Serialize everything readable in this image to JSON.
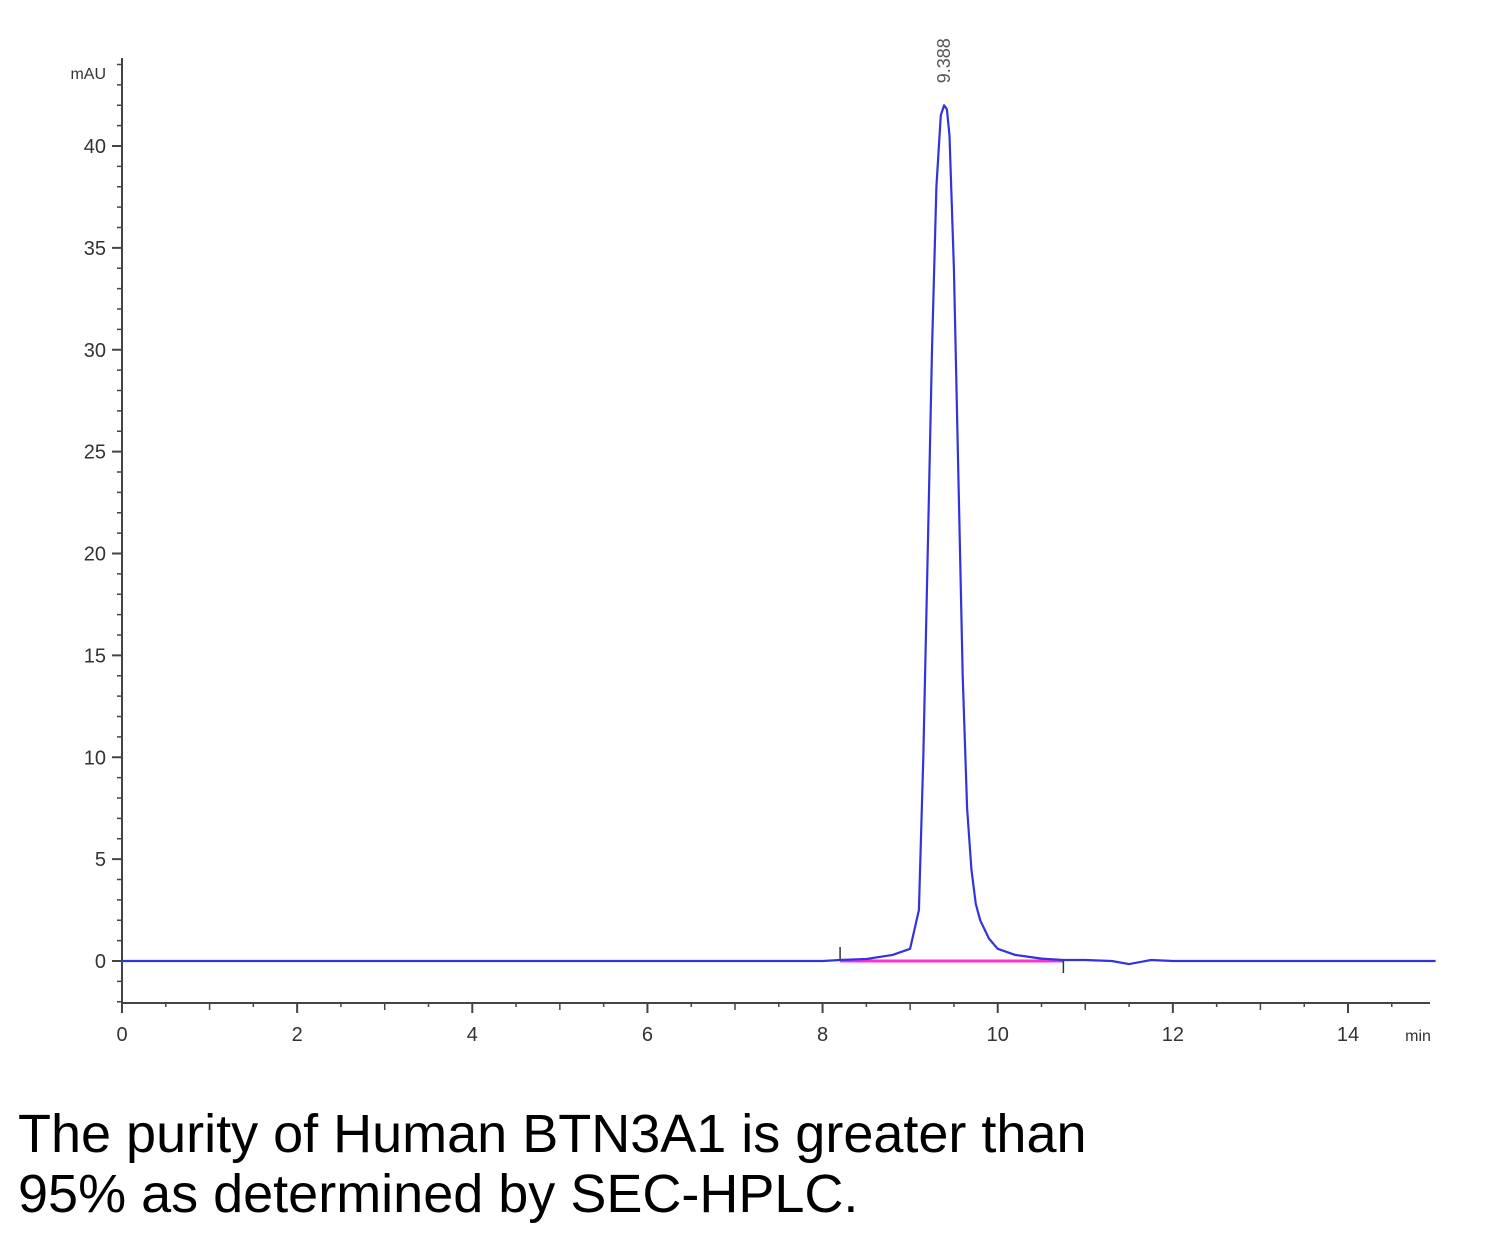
{
  "chart_data": {
    "type": "line",
    "title": "",
    "xlabel": "min",
    "ylabel": "mAU",
    "xlim": [
      0,
      15
    ],
    "ylim": [
      -2,
      44
    ],
    "xticks": [
      0,
      2,
      4,
      6,
      8,
      10,
      12,
      14
    ],
    "yticks": [
      0,
      5,
      10,
      15,
      20,
      25,
      30,
      35,
      40
    ],
    "grid": false,
    "peak": {
      "retention_time": 9.388,
      "label": "9.388",
      "height": 42
    },
    "baseline": {
      "start": 8.2,
      "end": 10.75,
      "value": 0
    },
    "series": [
      {
        "color": "#3333dd",
        "x": [
          0,
          1,
          2,
          3,
          4,
          5,
          6,
          7,
          8,
          8.2,
          8.5,
          8.8,
          9.0,
          9.1,
          9.15,
          9.2,
          9.25,
          9.3,
          9.35,
          9.388,
          9.42,
          9.45,
          9.5,
          9.55,
          9.6,
          9.65,
          9.7,
          9.75,
          9.8,
          9.9,
          10.0,
          10.2,
          10.5,
          10.75,
          11.0,
          11.3,
          11.5,
          11.75,
          12,
          13,
          14,
          15
        ],
        "y": [
          0,
          0,
          0,
          0,
          0,
          0,
          0,
          0,
          0,
          0.05,
          0.1,
          0.3,
          0.6,
          2.5,
          10,
          20,
          30,
          38,
          41.5,
          42,
          41.8,
          40.5,
          34,
          24,
          14,
          7.5,
          4.5,
          2.8,
          2.0,
          1.1,
          0.6,
          0.3,
          0.12,
          0.05,
          0.05,
          0.0,
          -0.15,
          0.05,
          0.0,
          0,
          0,
          0
        ]
      }
    ]
  },
  "caption": {
    "line1": "The purity of Human BTN3A1 is greater than",
    "line2": "95% as determined by SEC-HPLC."
  }
}
